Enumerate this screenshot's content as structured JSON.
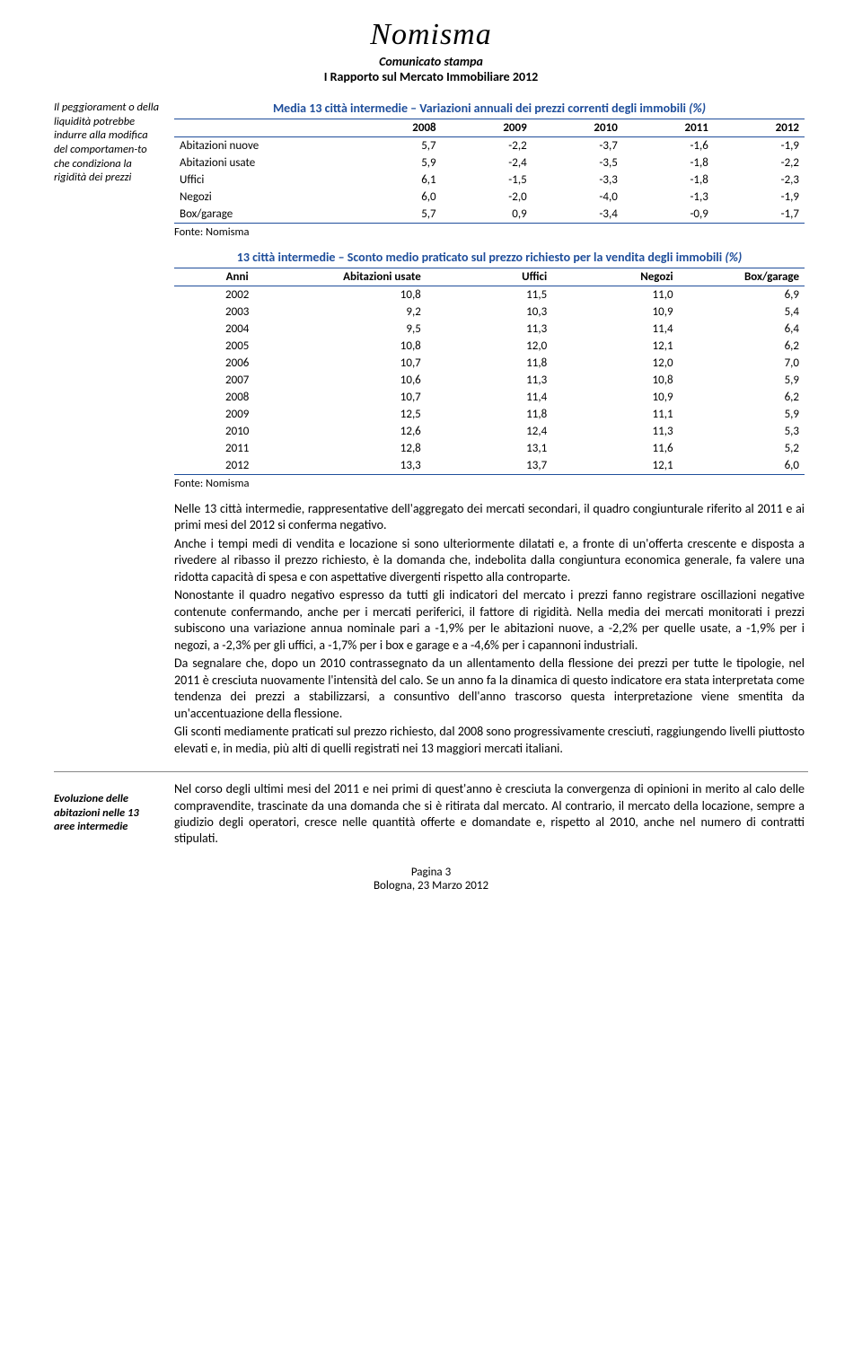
{
  "header": {
    "logo": "Nomisma",
    "sub1": "Comunicato stampa",
    "sub2": "I Rapporto sul Mercato Immobiliare 2012"
  },
  "sidebar": {
    "top": "Il peggiorament o della liquidità potrebbe indurre alla modifica del comportamen-to che condiziona la rigidità dei prezzi",
    "bottom": "Evoluzione delle abitazioni nelle 13 aree intermedie"
  },
  "table1": {
    "title_a": "Media 13 città intermedie – Variazioni annuali dei prezzi correnti degli immobili ",
    "title_b": "(%)",
    "headers": [
      "",
      "2008",
      "2009",
      "2010",
      "2011",
      "2012"
    ],
    "rows": [
      [
        "Abitazioni nuove",
        "5,7",
        "-2,2",
        "-3,7",
        "-1,6",
        "-1,9"
      ],
      [
        "Abitazioni usate",
        "5,9",
        "-2,4",
        "-3,5",
        "-1,8",
        "-2,2"
      ],
      [
        "Uffici",
        "6,1",
        "-1,5",
        "-3,3",
        "-1,8",
        "-2,3"
      ],
      [
        "Negozi",
        "6,0",
        "-2,0",
        "-4,0",
        "-1,3",
        "-1,9"
      ],
      [
        "Box/garage",
        "5,7",
        "0,9",
        "-3,4",
        "-0,9",
        "-1,7"
      ]
    ],
    "fonte": "Fonte: Nomisma"
  },
  "table2": {
    "title_a": "13 città intermedie – Sconto medio praticato sul prezzo richiesto per la vendita degli immobili ",
    "title_b": "(%)",
    "headers": [
      "Anni",
      "Abitazioni usate",
      "Uffici",
      "Negozi",
      "Box/garage"
    ],
    "rows": [
      [
        "2002",
        "10,8",
        "11,5",
        "11,0",
        "6,9"
      ],
      [
        "2003",
        "9,2",
        "10,3",
        "10,9",
        "5,4"
      ],
      [
        "2004",
        "9,5",
        "11,3",
        "11,4",
        "6,4"
      ],
      [
        "2005",
        "10,8",
        "12,0",
        "12,1",
        "6,2"
      ],
      [
        "2006",
        "10,7",
        "11,8",
        "12,0",
        "7,0"
      ],
      [
        "2007",
        "10,6",
        "11,3",
        "10,8",
        "5,9"
      ],
      [
        "2008",
        "10,7",
        "11,4",
        "10,9",
        "6,2"
      ],
      [
        "2009",
        "12,5",
        "11,8",
        "11,1",
        "5,9"
      ],
      [
        "2010",
        "12,6",
        "12,4",
        "11,3",
        "5,3"
      ],
      [
        "2011",
        "12,8",
        "13,1",
        "11,6",
        "5,2"
      ],
      [
        "2012",
        "13,3",
        "13,7",
        "12,1",
        "6,0"
      ]
    ],
    "fonte": "Fonte: Nomisma"
  },
  "body": {
    "p1": "Nelle 13 città intermedie, rappresentative dell'aggregato dei mercati secondari, il quadro congiunturale riferito al 2011 e ai primi mesi del 2012 si conferma negativo.",
    "p2": "Anche i tempi medi di vendita e locazione si sono ulteriormente dilatati e, a fronte di un'offerta crescente e disposta a rivedere al ribasso il prezzo richiesto, è la domanda che, indebolita dalla congiuntura economica generale, fa valere una ridotta capacità di spesa e con aspettative divergenti rispetto alla controparte.",
    "p3": "Nonostante il quadro negativo espresso da tutti gli indicatori del mercato i prezzi fanno registrare oscillazioni negative contenute confermando, anche per i mercati periferici, il fattore di rigidità. Nella media dei mercati monitorati i prezzi subiscono una variazione annua nominale pari a -1,9% per le abitazioni nuove, a -2,2% per quelle usate, a -1,9% per i negozi, a -2,3% per gli uffici, a -1,7% per i box e garage e a -4,6% per i capannoni industriali.",
    "p4": "Da segnalare che, dopo un 2010 contrassegnato da un allentamento della flessione dei prezzi per tutte le tipologie, nel 2011 è cresciuta nuovamente l'intensità del calo. Se un anno fa la dinamica di questo indicatore era stata interpretata come tendenza dei prezzi a stabilizzarsi, a consuntivo dell'anno trascorso questa interpretazione viene smentita da un'accentuazione della flessione.",
    "p5": "Gli sconti mediamente praticati sul prezzo richiesto, dal 2008 sono progressivamente cresciuti, raggiungendo livelli piuttosto elevati e, in media, più alti di quelli registrati nei 13 maggiori mercati italiani.",
    "p6": "Nel corso degli ultimi mesi del 2011 e nei primi di quest'anno è cresciuta la convergenza di opinioni in merito al calo delle compravendite, trascinate da una domanda che si è ritirata dal mercato. Al contrario, il mercato della locazione, sempre a giudizio degli operatori, cresce nelle quantità offerte e domandate e, rispetto al 2010, anche nel numero di contratti stipulati."
  },
  "footer": {
    "l1": "Pagina 3",
    "l2": "Bologna, 23 Marzo 2012"
  },
  "colors": {
    "accent": "#1f4e9b",
    "text": "#000000",
    "bg": "#ffffff"
  }
}
